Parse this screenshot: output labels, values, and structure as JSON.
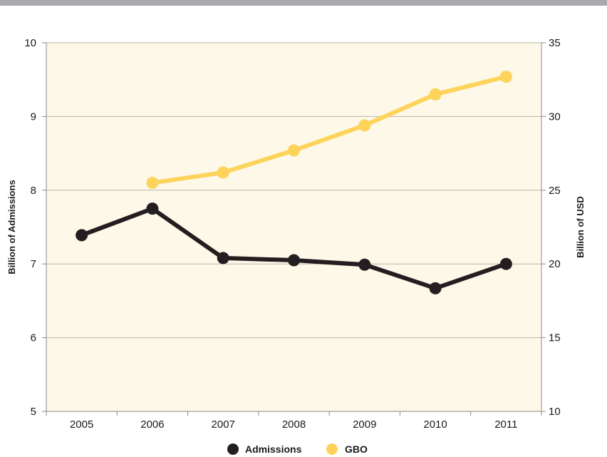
{
  "chart_data": {
    "type": "line",
    "categories": [
      "2005",
      "2006",
      "2007",
      "2008",
      "2009",
      "2010",
      "2011"
    ],
    "series": [
      {
        "name": "Admissions",
        "axis": "left",
        "color": "#231f20",
        "values": [
          7.39,
          7.75,
          7.08,
          7.05,
          6.99,
          6.67,
          7.0
        ]
      },
      {
        "name": "GBO",
        "axis": "right",
        "color": "#fdd35a",
        "values": [
          null,
          25.5,
          26.2,
          27.7,
          29.4,
          31.5,
          32.7
        ]
      }
    ],
    "y_left": {
      "label": "Billion of Admissions",
      "range": [
        5,
        10
      ],
      "ticks": [
        "5",
        "6",
        "7",
        "8",
        "9",
        "10"
      ]
    },
    "y_right": {
      "label": "Billion of USD",
      "range": [
        10,
        35
      ],
      "ticks": [
        "10",
        "15",
        "20",
        "25",
        "30",
        "35"
      ]
    },
    "grid": true,
    "plot_background": "#fdf8e8",
    "legend_position": "bottom-center"
  }
}
